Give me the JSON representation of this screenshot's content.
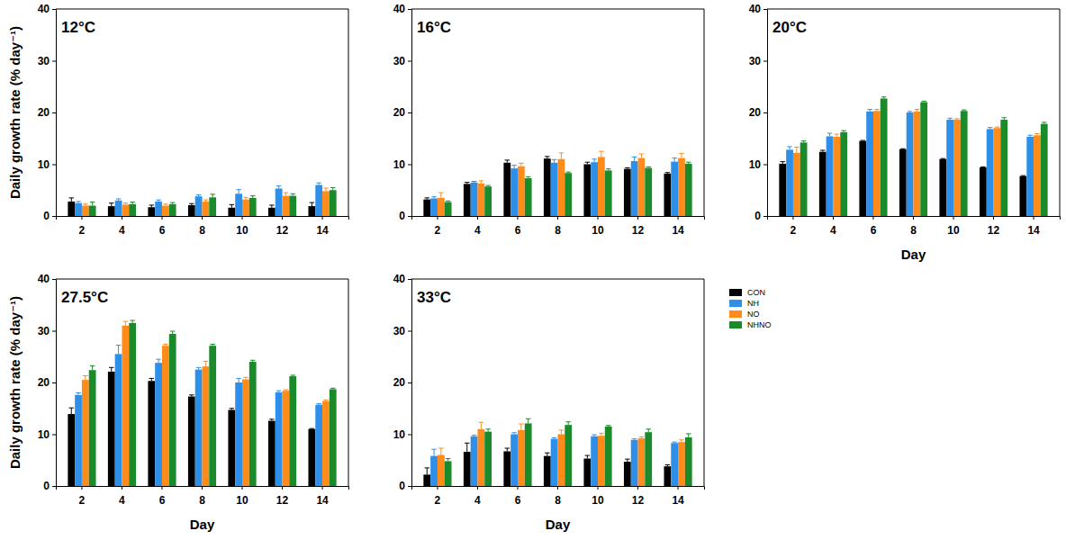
{
  "chart_data": [
    {
      "type": "bar",
      "title": "12°C",
      "y_label": "Daily growth rate (% day⁻¹)",
      "categories": [
        2,
        4,
        6,
        8,
        10,
        12,
        14
      ],
      "ylim": [
        0,
        40
      ],
      "yticks": [
        0,
        10,
        20,
        30,
        40
      ],
      "series": [
        {
          "name": "CON",
          "color": "#000000",
          "values": [
            2.8,
            1.9,
            1.7,
            2.1,
            1.6,
            1.6,
            1.9
          ],
          "errors": [
            0.7,
            0.6,
            0.4,
            0.3,
            0.6,
            0.5,
            0.7
          ]
        },
        {
          "name": "NH",
          "color": "#2e8fe8",
          "values": [
            2.5,
            3.0,
            2.8,
            3.8,
            4.3,
            5.3,
            6.0
          ],
          "errors": [
            0.3,
            0.3,
            0.3,
            0.3,
            0.8,
            0.5,
            0.4
          ]
        },
        {
          "name": "NO",
          "color": "#ff8c1a",
          "values": [
            2.0,
            2.2,
            2.0,
            2.8,
            3.2,
            3.9,
            4.8
          ],
          "errors": [
            0.3,
            0.3,
            0.3,
            0.3,
            0.4,
            0.6,
            0.6
          ]
        },
        {
          "name": "NHNO",
          "color": "#1a8a2a",
          "values": [
            2.0,
            2.3,
            2.3,
            3.6,
            3.5,
            3.9,
            5.0
          ],
          "errors": [
            0.7,
            0.4,
            0.3,
            0.6,
            0.4,
            0.4,
            0.5
          ]
        }
      ]
    },
    {
      "type": "bar",
      "title": "16°C",
      "categories": [
        2,
        4,
        6,
        8,
        10,
        12,
        14
      ],
      "ylim": [
        0,
        40
      ],
      "yticks": [
        0,
        10,
        20,
        30,
        40
      ],
      "series": [
        {
          "name": "CON",
          "color": "#000000",
          "values": [
            3.2,
            6.2,
            10.3,
            11.1,
            10.0,
            9.1,
            8.2
          ],
          "errors": [
            0.3,
            0.3,
            0.5,
            0.4,
            0.4,
            0.2,
            0.2
          ]
        },
        {
          "name": "NH",
          "color": "#2e8fe8",
          "values": [
            3.4,
            6.5,
            9.2,
            10.3,
            10.4,
            10.6,
            10.5
          ],
          "errors": [
            0.3,
            0.2,
            0.6,
            0.6,
            0.6,
            0.8,
            0.7
          ]
        },
        {
          "name": "NO",
          "color": "#ff8c1a",
          "values": [
            3.5,
            6.3,
            9.6,
            11.0,
            11.4,
            11.2,
            11.2
          ],
          "errors": [
            1.0,
            0.5,
            0.6,
            1.2,
            1.1,
            0.8,
            0.9
          ]
        },
        {
          "name": "NHNO",
          "color": "#1a8a2a",
          "values": [
            2.7,
            5.7,
            7.3,
            8.3,
            8.8,
            9.3,
            10.1
          ],
          "errors": [
            0.2,
            0.2,
            0.3,
            0.2,
            0.3,
            0.2,
            0.3
          ]
        }
      ]
    },
    {
      "type": "bar",
      "title": "20°C",
      "x_label": "Day",
      "categories": [
        2,
        4,
        6,
        8,
        10,
        12,
        14
      ],
      "ylim": [
        0,
        40
      ],
      "yticks": [
        0,
        10,
        20,
        30,
        40
      ],
      "series": [
        {
          "name": "CON",
          "color": "#000000",
          "values": [
            10.1,
            12.4,
            14.5,
            12.9,
            11.0,
            9.4,
            7.7
          ],
          "errors": [
            0.4,
            0.3,
            0.1,
            0.1,
            0.1,
            0.1,
            0.1
          ]
        },
        {
          "name": "NH",
          "color": "#2e8fe8",
          "values": [
            12.8,
            15.4,
            20.2,
            20.0,
            18.6,
            16.8,
            15.3
          ],
          "errors": [
            0.6,
            0.6,
            0.4,
            0.2,
            0.3,
            0.3,
            0.3
          ]
        },
        {
          "name": "NO",
          "color": "#ff8c1a",
          "values": [
            12.2,
            15.3,
            20.3,
            20.2,
            18.6,
            17.0,
            15.6
          ],
          "errors": [
            1.1,
            0.5,
            0.3,
            0.4,
            0.2,
            0.2,
            0.3
          ]
        },
        {
          "name": "NHNO",
          "color": "#1a8a2a",
          "values": [
            14.2,
            16.2,
            22.7,
            22.0,
            20.3,
            18.6,
            17.8
          ],
          "errors": [
            0.3,
            0.3,
            0.3,
            0.2,
            0.2,
            0.4,
            0.3
          ]
        }
      ]
    },
    {
      "type": "bar",
      "title": "27.5°C",
      "x_label": "Day",
      "y_label": "Daily growth rate (% day⁻¹)",
      "categories": [
        2,
        4,
        6,
        8,
        10,
        12,
        14
      ],
      "ylim": [
        0,
        40
      ],
      "yticks": [
        0,
        10,
        20,
        30,
        40
      ],
      "series": [
        {
          "name": "CON",
          "color": "#000000",
          "values": [
            13.9,
            22.1,
            20.3,
            17.3,
            14.7,
            12.6,
            11.0
          ],
          "errors": [
            1.2,
            0.8,
            0.5,
            0.3,
            0.3,
            0.3,
            0.1
          ]
        },
        {
          "name": "NH",
          "color": "#2e8fe8",
          "values": [
            17.6,
            25.5,
            23.8,
            22.5,
            20.0,
            18.1,
            15.7
          ],
          "errors": [
            0.4,
            1.7,
            0.7,
            0.4,
            0.8,
            0.3,
            0.2
          ]
        },
        {
          "name": "NO",
          "color": "#ff8c1a",
          "values": [
            20.5,
            31.0,
            27.1,
            23.1,
            20.6,
            18.4,
            16.4
          ],
          "errors": [
            0.8,
            0.8,
            0.3,
            1.0,
            0.4,
            0.2,
            0.2
          ]
        },
        {
          "name": "NHNO",
          "color": "#1a8a2a",
          "values": [
            22.4,
            31.5,
            29.4,
            27.1,
            24.0,
            21.2,
            18.7
          ],
          "errors": [
            0.8,
            0.5,
            0.5,
            0.3,
            0.3,
            0.2,
            0.2
          ]
        }
      ]
    },
    {
      "type": "bar",
      "title": "33°C",
      "x_label": "Day",
      "legend": "right",
      "categories": [
        2,
        4,
        6,
        8,
        10,
        12,
        14
      ],
      "ylim": [
        0,
        40
      ],
      "yticks": [
        0,
        10,
        20,
        30,
        40
      ],
      "series": [
        {
          "name": "CON",
          "color": "#000000",
          "values": [
            2.2,
            6.6,
            6.7,
            5.8,
            5.3,
            4.7,
            3.8
          ],
          "errors": [
            1.3,
            1.7,
            0.6,
            0.6,
            0.6,
            0.5,
            0.3
          ]
        },
        {
          "name": "NH",
          "color": "#2e8fe8",
          "values": [
            5.8,
            9.6,
            10.0,
            9.1,
            9.6,
            8.9,
            8.3
          ],
          "errors": [
            1.3,
            0.2,
            0.3,
            0.2,
            0.3,
            0.2,
            0.2
          ]
        },
        {
          "name": "NO",
          "color": "#ff8c1a",
          "values": [
            6.0,
            11.0,
            10.8,
            10.0,
            9.7,
            9.2,
            8.5
          ],
          "errors": [
            1.3,
            1.3,
            1.2,
            0.8,
            0.5,
            0.3,
            0.4
          ]
        },
        {
          "name": "NHNO",
          "color": "#1a8a2a",
          "values": [
            4.8,
            10.5,
            12.1,
            11.8,
            11.5,
            10.4,
            9.4
          ],
          "errors": [
            0.5,
            0.5,
            0.9,
            0.6,
            0.2,
            0.6,
            0.7
          ]
        }
      ]
    }
  ]
}
